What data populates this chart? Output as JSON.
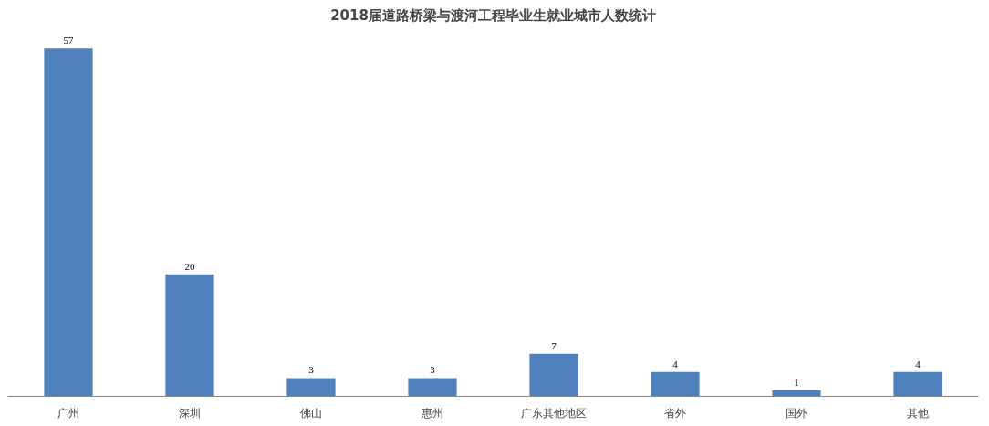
{
  "chart_data": {
    "type": "bar",
    "title": "2018届道路桥梁与渡河工程毕业生就业城市人数统计",
    "categories": [
      "广州",
      "深圳",
      "佛山",
      "惠州",
      "广东其他地区",
      "省外",
      "国外",
      "其他"
    ],
    "values": [
      57,
      20,
      3,
      3,
      7,
      4,
      1,
      4
    ],
    "color": "#4f81bd",
    "data_labels": true
  }
}
